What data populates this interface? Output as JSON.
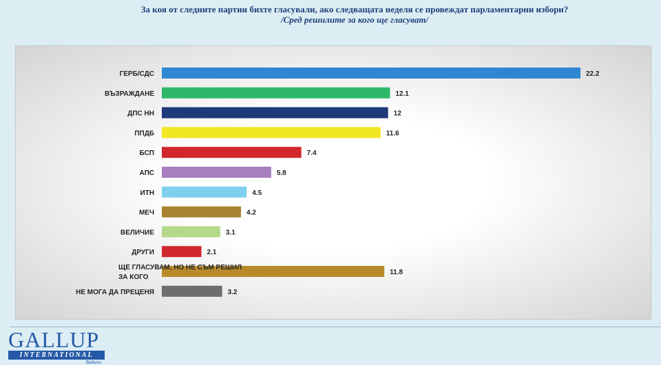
{
  "header": {
    "title": "За коя от следните партии бихте  гласували,  ако следващата неделя се провеждат парламентарни избори?",
    "subtitle": "/Сред решилите за кого ще гласуват/"
  },
  "logo": {
    "name": "GALLUP",
    "sub": "INTERNATIONAL",
    "region": "Balkans"
  },
  "chart_data": {
    "type": "bar",
    "orientation": "horizontal",
    "grid": false,
    "categories": [
      "ГЕРБ/СДС",
      "ВЪЗРАЖДАНЕ",
      "ДПС НН",
      "ППДБ",
      "БСП",
      "АПС",
      "ИТН",
      "МЕЧ",
      "ВЕЛИЧИЕ",
      "ДРУГИ",
      "ЩЕ ГЛАСУВАМ, НО НЕ СЪМ РЕШИЛ ЗА КОГО",
      "НЕ МОГА ДА ПРЕЦЕНЯ"
    ],
    "values": [
      22.2,
      12.1,
      12,
      11.6,
      7.4,
      5.8,
      4.5,
      4.2,
      3.1,
      2.1,
      11.8,
      3.2
    ],
    "value_labels": [
      "22.2",
      "12.1",
      "12",
      "11.6",
      "7.4",
      "5.8",
      "4.5",
      "4.2",
      "3.1",
      "2.1",
      "11.8",
      "3.2"
    ],
    "colors": [
      "#2f86d1",
      "#2fb86a",
      "#1f3a78",
      "#f2e724",
      "#d0282c",
      "#a77fbf",
      "#7fd0ef",
      "#a98430",
      "#b4d98a",
      "#d0282c",
      "#b88a2c",
      "#6e6e6e"
    ]
  }
}
